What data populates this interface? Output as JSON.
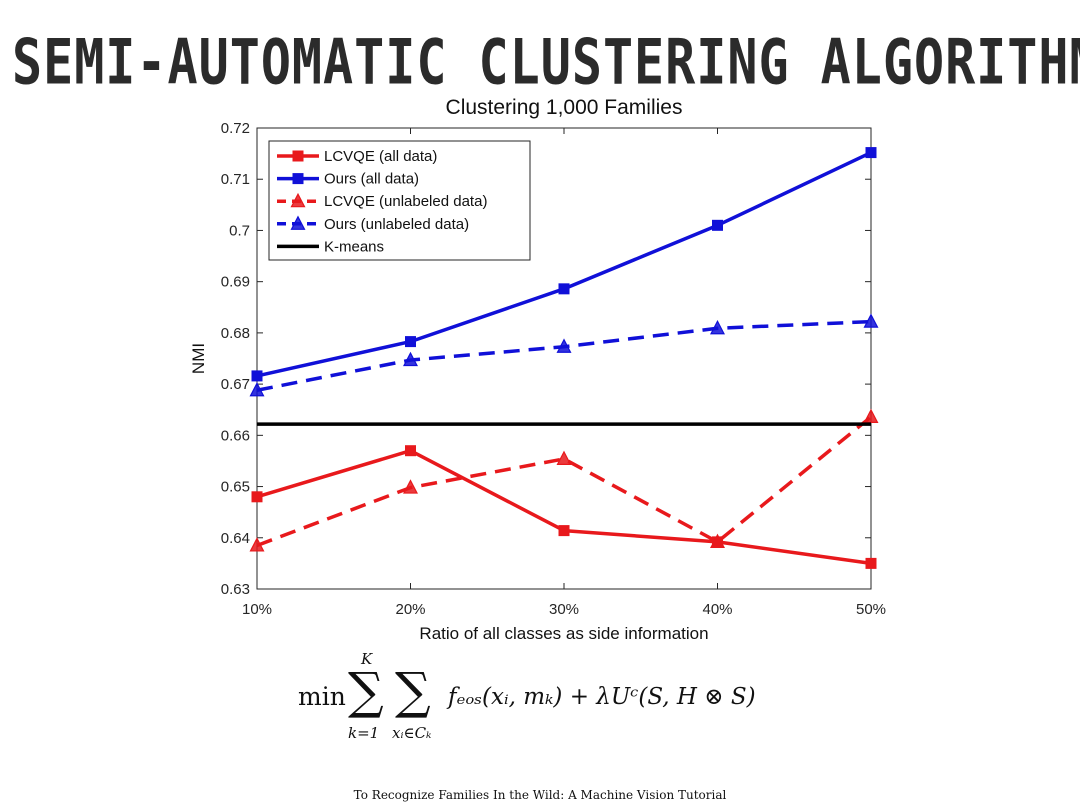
{
  "slide": {
    "title": "SEMI-AUTOMATIC CLUSTERING ALGORITHM",
    "footer": "To Recognize Families In the Wild: A Machine Vision Tutorial"
  },
  "formula": {
    "min": "min",
    "sum1_top": "K",
    "sum1_bottom": "k=1",
    "sum2_bottom": "xᵢ∈Cₖ",
    "body": "fₑₒₛ(xᵢ, mₖ) + λUᶜ(S, H ⊗ S)"
  },
  "chart_data": {
    "type": "line",
    "title": "Clustering 1,000 Families",
    "xlabel": "Ratio of all classes as side information",
    "ylabel": "NMI",
    "categories": [
      "10%",
      "20%",
      "30%",
      "40%",
      "50%"
    ],
    "ylim": [
      0.63,
      0.72
    ],
    "yticks": [
      "0.63",
      "0.64",
      "0.65",
      "0.66",
      "0.67",
      "0.68",
      "0.69",
      "0.7",
      "0.71",
      "0.72"
    ],
    "legend_position": "top-left",
    "grid": false,
    "series": [
      {
        "name": "LCVQE  (all data)",
        "values": [
          0.648,
          0.657,
          0.6414,
          0.6392,
          0.635
        ],
        "color": "#e8191c",
        "dash": "solid",
        "marker": "square"
      },
      {
        "name": "Ours  (all data)",
        "values": [
          0.6716,
          0.6783,
          0.6886,
          0.701,
          0.7152
        ],
        "color": "#1010d8",
        "dash": "solid",
        "marker": "square"
      },
      {
        "name": "LCVQE  (unlabeled data)",
        "values": [
          0.6385,
          0.6498,
          0.6554,
          0.6392,
          0.6636
        ],
        "color": "#e8191c",
        "dash": "dashed",
        "marker": "triangle"
      },
      {
        "name": "Ours (unlabeled data)",
        "values": [
          0.6688,
          0.6747,
          0.6773,
          0.6809,
          0.6822
        ],
        "color": "#1010d8",
        "dash": "dashed",
        "marker": "triangle"
      },
      {
        "name": "K-means",
        "values": [
          0.6622,
          0.6622,
          0.6622,
          0.6622,
          0.6622
        ],
        "color": "#000000",
        "dash": "solid",
        "marker": "none"
      }
    ]
  }
}
